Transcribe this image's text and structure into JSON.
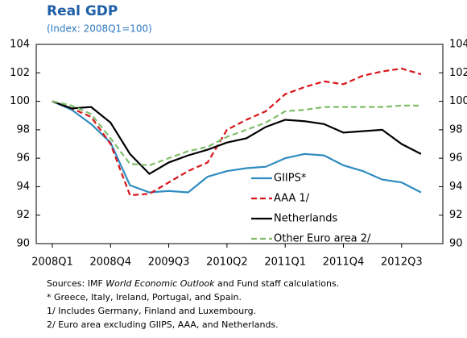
{
  "chart_data": {
    "type": "line",
    "title": "Real GDP",
    "subtitle": "(Index: 2008Q1=100)",
    "categories": [
      "2008Q1",
      null,
      null,
      "2008Q4",
      null,
      null,
      "2009Q3",
      null,
      null,
      "2010Q2",
      null,
      null,
      "2011Q1",
      null,
      null,
      "2011Q4",
      null,
      null,
      "2012Q3",
      null
    ],
    "series": [
      {
        "name": "GIIPS*",
        "color": "#2e8bc0",
        "dash": false,
        "values": [
          100,
          99.4,
          98.4,
          97.1,
          94.1,
          93.6,
          93.7,
          93.6,
          94.7,
          95.1,
          95.3,
          95.4,
          96.0,
          96.3,
          96.2,
          95.5,
          95.1,
          94.5,
          94.3,
          93.6
        ]
      },
      {
        "name": "AAA 1/",
        "color": "#d9141b",
        "dash": true,
        "values": [
          100,
          99.5,
          98.9,
          97.0,
          93.4,
          93.5,
          94.3,
          95.1,
          95.7,
          98.0,
          98.7,
          99.3,
          100.5,
          101.0,
          101.4,
          101.2,
          101.8,
          102.1,
          102.3,
          101.9
        ]
      },
      {
        "name": "Netherlands",
        "color": "#000000",
        "dash": false,
        "values": [
          100,
          99.5,
          99.6,
          98.5,
          96.3,
          94.9,
          95.7,
          96.2,
          96.6,
          97.1,
          97.4,
          98.2,
          98.7,
          98.6,
          98.4,
          97.8,
          97.9,
          98.0,
          97.0,
          96.3
        ]
      },
      {
        "name": "Other Euro area 2/",
        "color": "#7fbf6a",
        "dash": true,
        "values": [
          100,
          99.7,
          99.1,
          97.4,
          95.6,
          95.5,
          96.0,
          96.5,
          96.8,
          97.5,
          98.0,
          98.5,
          99.3,
          99.4,
          99.6,
          99.6,
          99.6,
          99.6,
          99.7,
          99.7
        ]
      }
    ],
    "ylim": [
      90,
      104
    ],
    "yticks": [
      90,
      92,
      94,
      96,
      98,
      100,
      102,
      104
    ],
    "y2lim": [
      90,
      104
    ],
    "y2ticks": [
      90,
      92,
      94,
      96,
      98,
      100,
      102,
      104
    ],
    "grid": false,
    "sources": [
      "Sources: IMF ",
      "World Economic Outlook",
      " and Fund staff calculations."
    ],
    "notes": [
      "* Greece, Italy, Ireland, Portugal, and Spain.",
      "1/ Includes Germany, Finland and Luxembourg.",
      "2/ Euro area excluding GIIPS, AAA, and Netherlands."
    ]
  }
}
